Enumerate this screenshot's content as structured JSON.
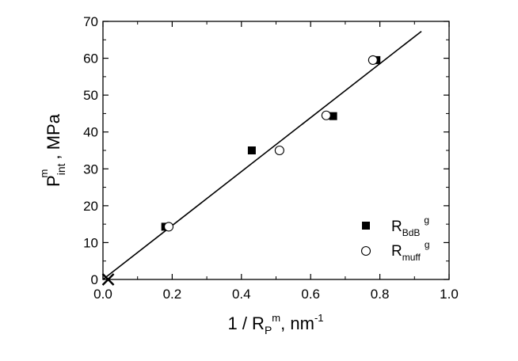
{
  "chart_data": {
    "type": "scatter",
    "xlim": [
      0.0,
      1.0
    ],
    "ylim": [
      0,
      70
    ],
    "x_ticks": [
      0.0,
      0.2,
      0.4,
      0.6,
      0.8,
      1.0
    ],
    "x_tick_labels": [
      "0.0",
      "0.2",
      "0.4",
      "0.6",
      "0.8",
      "1.0"
    ],
    "y_ticks": [
      0,
      10,
      20,
      30,
      40,
      50,
      60,
      70
    ],
    "y_tick_labels": [
      "0",
      "10",
      "20",
      "30",
      "40",
      "50",
      "60",
      "70"
    ],
    "xlabel": {
      "prefix": "1 / R",
      "sub": "P",
      "sup": "m",
      "mid": ",  nm",
      "unit_sup": "-1"
    },
    "ylabel": {
      "prefix": "P",
      "sub": "int",
      "sup": "m",
      "suffix": " ,  MPa"
    },
    "legend_position": "bottom-right",
    "series": [
      {
        "name": {
          "base": "R",
          "sub": "BdB",
          "sup": "g"
        },
        "marker": "filled-square",
        "points": [
          [
            0.18,
            14.3
          ],
          [
            0.43,
            35.0
          ],
          [
            0.665,
            44.3
          ],
          [
            0.79,
            59.5
          ]
        ]
      },
      {
        "name": {
          "base": "R",
          "sub": "muff",
          "sup": "g"
        },
        "marker": "open-circle",
        "points": [
          [
            0.19,
            14.3
          ],
          [
            0.51,
            35.0
          ],
          [
            0.645,
            44.5
          ],
          [
            0.78,
            59.5
          ]
        ]
      }
    ],
    "fit_line": {
      "x": [
        0.0,
        0.92
      ],
      "y": [
        0.0,
        67.3
      ]
    },
    "origin_marker": {
      "x": 0.015,
      "y": 0.0,
      "marker": "cross"
    },
    "colors": {
      "axis": "#000000",
      "marker": "#000000",
      "background": "#ffffff"
    }
  }
}
